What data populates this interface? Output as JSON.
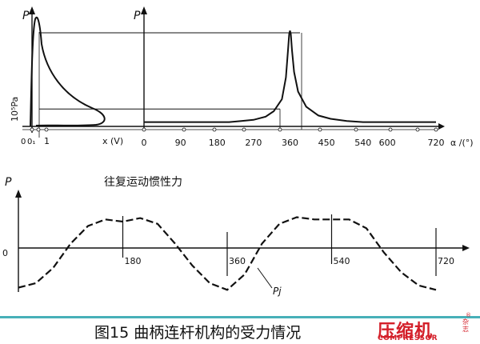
{
  "chart_data": [
    {
      "type": "line",
      "name": "top",
      "y_axis_letters": [
        "P",
        "P"
      ],
      "ylabel": "10⁵Pa",
      "left_ticks": [
        "0",
        "0₁",
        "1",
        "x (V)"
      ],
      "xtick_labels": [
        "0",
        "90",
        "180",
        "270",
        "360",
        "450",
        "540",
        "600",
        "720"
      ],
      "xtick_values": [
        0,
        90,
        180,
        270,
        360,
        450,
        540,
        600,
        720
      ],
      "xlabel": "α /(°)",
      "xlim": [
        -20,
        740
      ],
      "ylim": [
        0,
        100
      ],
      "series": [
        {
          "x": [
            0,
            10,
            20,
            30,
            45,
            60,
            90,
            120,
            150,
            180,
            210,
            240,
            270,
            300,
            320,
            340,
            350,
            355,
            358,
            360,
            362,
            365,
            370,
            380,
            400,
            430,
            460,
            500,
            540,
            600,
            660,
            720
          ],
          "y": [
            4,
            4,
            4,
            4,
            4,
            4,
            4,
            4,
            4,
            4,
            4,
            5,
            6,
            9,
            14,
            25,
            45,
            70,
            85,
            88,
            85,
            70,
            50,
            32,
            18,
            10,
            7,
            5,
            4,
            4,
            4,
            4
          ]
        }
      ],
      "reference_lines": [
        86,
        16
      ]
    },
    {
      "type": "line",
      "name": "bottom",
      "title": "往复运动惯性力",
      "y_axis_letter": "P",
      "xtick_labels": [
        "0",
        "180",
        "360",
        "540",
        "720"
      ],
      "xtick_values": [
        0,
        180,
        360,
        540,
        720
      ],
      "series_label": "Pj",
      "xlim": [
        0,
        720
      ],
      "ylim": [
        -1,
        1
      ],
      "series": [
        {
          "x": [
            0,
            30,
            60,
            90,
            120,
            150,
            180,
            210,
            240,
            270,
            300,
            330,
            360,
            390,
            420,
            450,
            480,
            510,
            540,
            570,
            600,
            630,
            660,
            690,
            720
          ],
          "y": [
            -0.9,
            -0.8,
            -0.45,
            0.1,
            0.5,
            0.65,
            0.6,
            0.68,
            0.55,
            0.1,
            -0.4,
            -0.8,
            -0.95,
            -0.6,
            0.1,
            0.55,
            0.7,
            0.65,
            0.65,
            0.65,
            0.45,
            -0.1,
            -0.55,
            -0.85,
            -0.95
          ]
        }
      ]
    }
  ],
  "caption": "图15 曲柄连杆机构的受力情况",
  "logo": {
    "cn": "压缩机",
    "en": "COMPRESSOR",
    "side": "杂志"
  },
  "colors": {
    "line": "#111111",
    "rule": "#47b0b8",
    "brand": "#d4202a"
  }
}
